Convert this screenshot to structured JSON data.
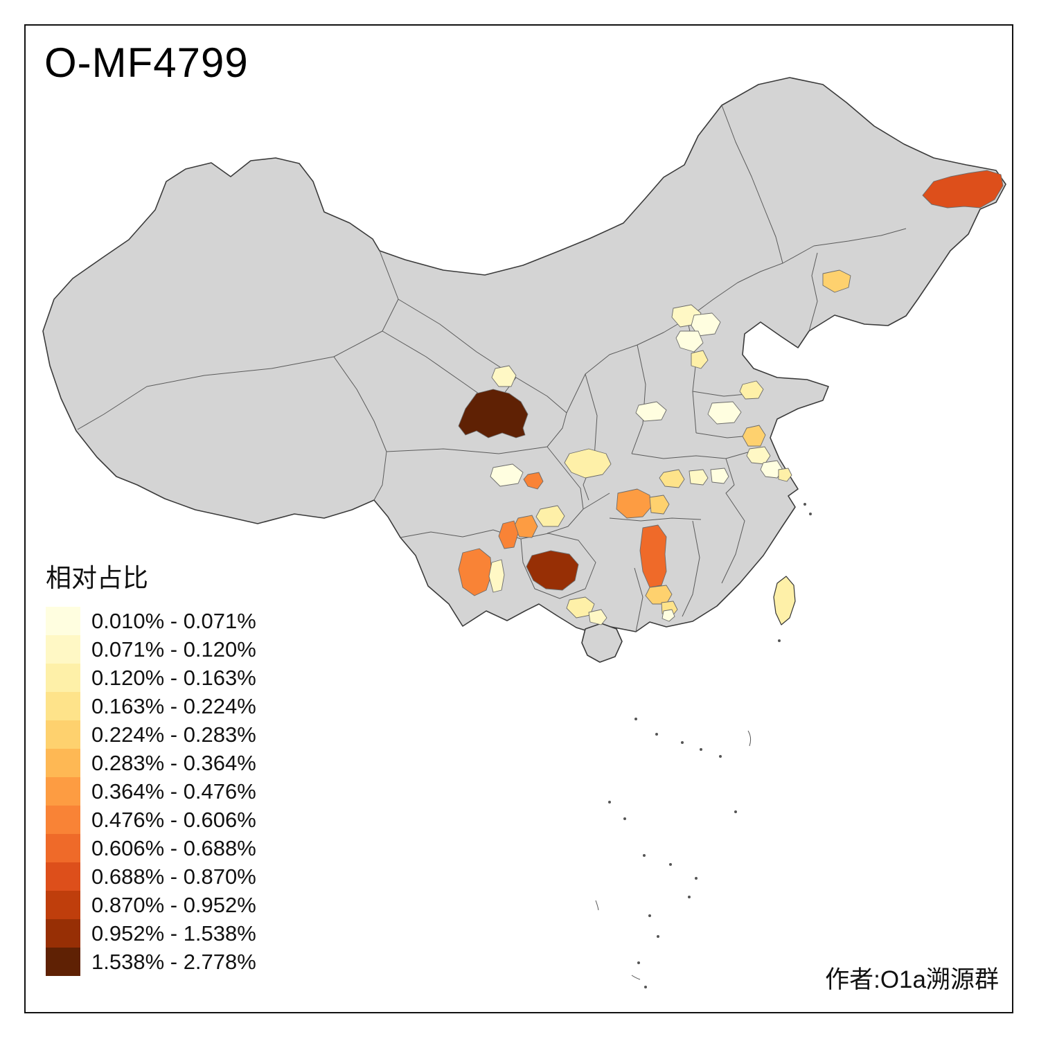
{
  "title": "O-MF4799",
  "legend": {
    "title": "相对占比",
    "bins": [
      {
        "label": "0.010% - 0.071%",
        "color": "#FFFEE0"
      },
      {
        "label": "0.071% - 0.120%",
        "color": "#FFF8C5"
      },
      {
        "label": "0.120% - 0.163%",
        "color": "#FEF0A8"
      },
      {
        "label": "0.163% - 0.224%",
        "color": "#FEE38A"
      },
      {
        "label": "0.224% - 0.283%",
        "color": "#FED16E"
      },
      {
        "label": "0.283% - 0.364%",
        "color": "#FEB854"
      },
      {
        "label": "0.364% - 0.476%",
        "color": "#FD9C42"
      },
      {
        "label": "0.476% - 0.606%",
        "color": "#F98336"
      },
      {
        "label": "0.606% - 0.688%",
        "color": "#EF6A29"
      },
      {
        "label": "0.688% - 0.870%",
        "color": "#DD4F1B"
      },
      {
        "label": "0.870% - 0.952%",
        "color": "#BF3E0C"
      },
      {
        "label": "0.952% - 1.538%",
        "color": "#972F05"
      },
      {
        "label": "1.538% - 2.778%",
        "color": "#5F2104"
      }
    ]
  },
  "attribution": "作者:O1a溯源群",
  "map": {
    "land_color": "#d4d4d4",
    "national_border_color": "#3a3a3a",
    "province_border_color": "#5a5a5a"
  }
}
